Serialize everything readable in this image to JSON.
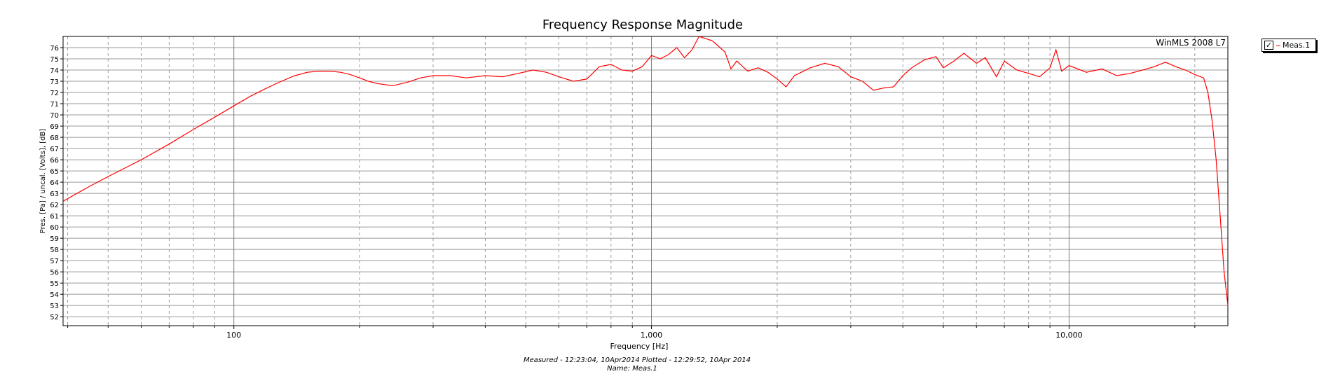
{
  "chart_data": {
    "type": "line",
    "title": "Frequency Response Magnitude",
    "xlabel": "Frequency [Hz]",
    "ylabel": "Pres. [Pa] / uncal. [Volts], [dB]",
    "watermark": "WinMLS 2008 L7",
    "x_scale": "log",
    "xlim": [
      39,
      24000
    ],
    "ylim": [
      51.2,
      77.0
    ],
    "x_tick_labels": [
      {
        "value": 100,
        "label": "100"
      },
      {
        "value": 1000,
        "label": "1,000"
      },
      {
        "value": 10000,
        "label": "10,000"
      }
    ],
    "y_ticks": [
      52,
      53,
      54,
      55,
      56,
      57,
      58,
      59,
      60,
      61,
      62,
      63,
      64,
      65,
      66,
      67,
      68,
      69,
      70,
      71,
      72,
      73,
      74,
      75,
      76
    ],
    "grid": true,
    "legend_position": "outside-right-top",
    "series": [
      {
        "name": "Meas.1",
        "color": "#ff0000",
        "points": [
          [
            39,
            62.3
          ],
          [
            45,
            63.6
          ],
          [
            50,
            64.5
          ],
          [
            60,
            66.0
          ],
          [
            70,
            67.4
          ],
          [
            80,
            68.7
          ],
          [
            90,
            69.8
          ],
          [
            100,
            70.8
          ],
          [
            110,
            71.7
          ],
          [
            120,
            72.4
          ],
          [
            130,
            73.0
          ],
          [
            140,
            73.5
          ],
          [
            150,
            73.8
          ],
          [
            160,
            73.9
          ],
          [
            170,
            73.9
          ],
          [
            180,
            73.8
          ],
          [
            190,
            73.6
          ],
          [
            200,
            73.3
          ],
          [
            210,
            73.0
          ],
          [
            220,
            72.8
          ],
          [
            240,
            72.6
          ],
          [
            260,
            72.9
          ],
          [
            280,
            73.3
          ],
          [
            300,
            73.5
          ],
          [
            330,
            73.5
          ],
          [
            360,
            73.3
          ],
          [
            400,
            73.5
          ],
          [
            440,
            73.4
          ],
          [
            480,
            73.7
          ],
          [
            520,
            74.0
          ],
          [
            560,
            73.8
          ],
          [
            600,
            73.4
          ],
          [
            650,
            73.0
          ],
          [
            700,
            73.2
          ],
          [
            750,
            74.3
          ],
          [
            800,
            74.5
          ],
          [
            850,
            74.0
          ],
          [
            900,
            73.9
          ],
          [
            950,
            74.3
          ],
          [
            1000,
            75.3
          ],
          [
            1050,
            75.0
          ],
          [
            1100,
            75.4
          ],
          [
            1150,
            76.0
          ],
          [
            1200,
            75.1
          ],
          [
            1250,
            75.8
          ],
          [
            1300,
            77.0
          ],
          [
            1350,
            76.8
          ],
          [
            1400,
            76.6
          ],
          [
            1500,
            75.6
          ],
          [
            1550,
            74.1
          ],
          [
            1600,
            74.8
          ],
          [
            1700,
            73.9
          ],
          [
            1800,
            74.2
          ],
          [
            1900,
            73.8
          ],
          [
            2000,
            73.2
          ],
          [
            2100,
            72.5
          ],
          [
            2200,
            73.5
          ],
          [
            2400,
            74.2
          ],
          [
            2600,
            74.6
          ],
          [
            2800,
            74.3
          ],
          [
            3000,
            73.4
          ],
          [
            3200,
            73.0
          ],
          [
            3400,
            72.2
          ],
          [
            3600,
            72.4
          ],
          [
            3800,
            72.5
          ],
          [
            4000,
            73.5
          ],
          [
            4200,
            74.2
          ],
          [
            4500,
            74.9
          ],
          [
            4800,
            75.2
          ],
          [
            5000,
            74.2
          ],
          [
            5300,
            74.8
          ],
          [
            5600,
            75.5
          ],
          [
            6000,
            74.6
          ],
          [
            6300,
            75.1
          ],
          [
            6700,
            73.4
          ],
          [
            7000,
            74.8
          ],
          [
            7500,
            74.0
          ],
          [
            8000,
            73.7
          ],
          [
            8500,
            73.4
          ],
          [
            9000,
            74.2
          ],
          [
            9300,
            75.8
          ],
          [
            9600,
            73.9
          ],
          [
            10000,
            74.4
          ],
          [
            11000,
            73.8
          ],
          [
            12000,
            74.1
          ],
          [
            13000,
            73.5
          ],
          [
            14000,
            73.7
          ],
          [
            15000,
            74.0
          ],
          [
            16000,
            74.3
          ],
          [
            17000,
            74.7
          ],
          [
            18000,
            74.3
          ],
          [
            19000,
            74.0
          ],
          [
            20000,
            73.6
          ],
          [
            21000,
            73.3
          ],
          [
            21500,
            72.0
          ],
          [
            22000,
            69.5
          ],
          [
            22500,
            66.0
          ],
          [
            23000,
            61.0
          ],
          [
            23500,
            56.0
          ],
          [
            24000,
            53.0
          ]
        ]
      }
    ]
  },
  "legend": {
    "checked": true,
    "check_mark": "✓",
    "label": "Meas.1"
  },
  "footer": {
    "line1": "Measured - 12:23:04, 10Apr2014      Plotted - 12:29:52, 10Apr 2014",
    "line2": "Name: Meas.1"
  }
}
